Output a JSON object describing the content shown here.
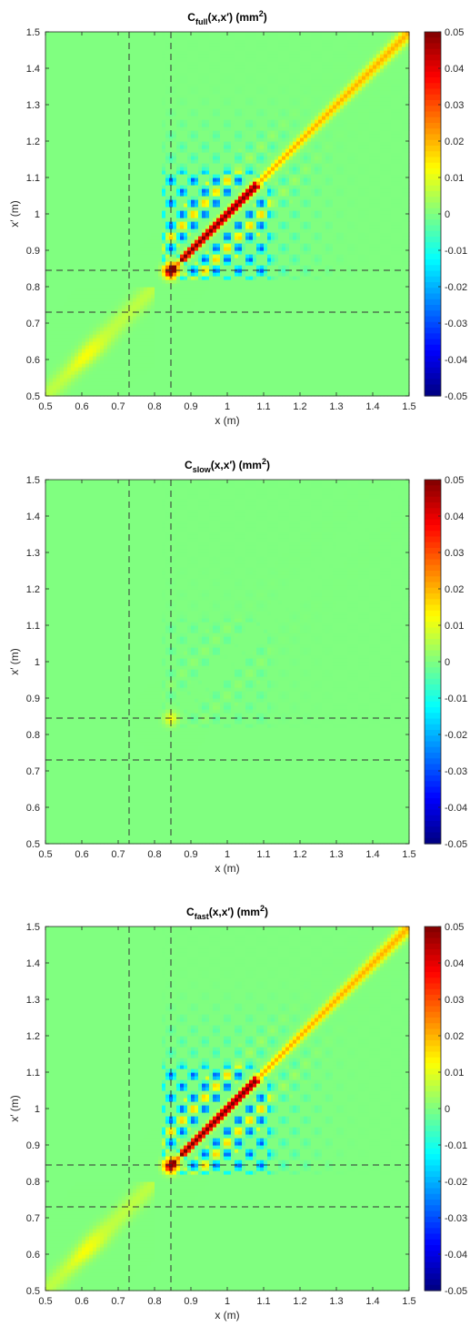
{
  "chart_data": [
    {
      "type": "heatmap",
      "title": "C_full(x,x') (mm^2)",
      "title_main": "C",
      "title_sub": "full",
      "title_tail": "(x,x′) (mm",
      "title_sup": "2",
      "title_close": ")",
      "xlabel": "x (m)",
      "ylabel": "x′ (m)",
      "xlim": [
        0.5,
        1.5
      ],
      "ylim": [
        0.5,
        1.5
      ],
      "xticks": [
        "0.5",
        "0.6",
        "0.7",
        "0.8",
        "0.9",
        "1",
        "1.1",
        "1.2",
        "1.3",
        "1.4",
        "1.5"
      ],
      "yticks": [
        "0.5",
        "0.6",
        "0.7",
        "0.8",
        "0.9",
        "1",
        "1.1",
        "1.2",
        "1.3",
        "1.4",
        "1.5"
      ],
      "colorbar": {
        "range": [
          -0.05,
          0.05
        ],
        "colormap": "jet",
        "ticks": [
          "0.05",
          "0.04",
          "0.03",
          "0.02",
          "0.01",
          "0",
          "-0.01",
          "-0.02",
          "-0.03",
          "-0.04",
          "-0.05"
        ]
      },
      "reference_lines": [
        0.73,
        0.845
      ],
      "features": {
        "diagonal_amplitude": 0.02,
        "hotspot": [
          0.845,
          0.845,
          0.06
        ],
        "checker_amplitude": 0.03,
        "lower_diagonal_amplitude": 0.012
      }
    },
    {
      "type": "heatmap",
      "title": "C_slow(x,x') (mm^2)",
      "title_main": "C",
      "title_sub": "slow",
      "title_tail": "(x,x′) (mm",
      "title_sup": "2",
      "title_close": ")",
      "xlabel": "x (m)",
      "ylabel": "x′ (m)",
      "xlim": [
        0.5,
        1.5
      ],
      "ylim": [
        0.5,
        1.5
      ],
      "xticks": [
        "0.5",
        "0.6",
        "0.7",
        "0.8",
        "0.9",
        "1",
        "1.1",
        "1.2",
        "1.3",
        "1.4",
        "1.5"
      ],
      "yticks": [
        "0.5",
        "0.6",
        "0.7",
        "0.8",
        "0.9",
        "1",
        "1.1",
        "1.2",
        "1.3",
        "1.4",
        "1.5"
      ],
      "colorbar": {
        "range": [
          -0.05,
          0.05
        ],
        "colormap": "jet",
        "ticks": [
          "0.05",
          "0.04",
          "0.03",
          "0.02",
          "0.01",
          "0",
          "-0.01",
          "-0.02",
          "-0.03",
          "-0.04",
          "-0.05"
        ]
      },
      "reference_lines": [
        0.73,
        0.845
      ],
      "features": {
        "diagonal_amplitude": 0.0,
        "hotspot": [
          0.845,
          0.845,
          0.012
        ],
        "checker_amplitude": 0.003,
        "lower_diagonal_amplitude": 0.0
      }
    },
    {
      "type": "heatmap",
      "title": "C_fast(x,x') (mm^2)",
      "title_main": "C",
      "title_sub": "fast",
      "title_tail": "(x,x′) (mm",
      "title_sup": "2",
      "title_close": ")",
      "xlabel": "x (m)",
      "ylabel": "x′ (m)",
      "xlim": [
        0.5,
        1.5
      ],
      "ylim": [
        0.5,
        1.5
      ],
      "xticks": [
        "0.5",
        "0.6",
        "0.7",
        "0.8",
        "0.9",
        "1",
        "1.1",
        "1.2",
        "1.3",
        "1.4",
        "1.5"
      ],
      "yticks": [
        "0.5",
        "0.6",
        "0.7",
        "0.8",
        "0.9",
        "1",
        "1.1",
        "1.2",
        "1.3",
        "1.4",
        "1.5"
      ],
      "colorbar": {
        "range": [
          -0.05,
          0.05
        ],
        "colormap": "jet",
        "ticks": [
          "0.05",
          "0.04",
          "0.03",
          "0.02",
          "0.01",
          "0",
          "-0.01",
          "-0.02",
          "-0.03",
          "-0.04",
          "-0.05"
        ]
      },
      "reference_lines": [
        0.73,
        0.845
      ],
      "features": {
        "diagonal_amplitude": 0.02,
        "hotspot": [
          0.845,
          0.845,
          0.055
        ],
        "checker_amplitude": 0.03,
        "lower_diagonal_amplitude": 0.012
      }
    }
  ]
}
